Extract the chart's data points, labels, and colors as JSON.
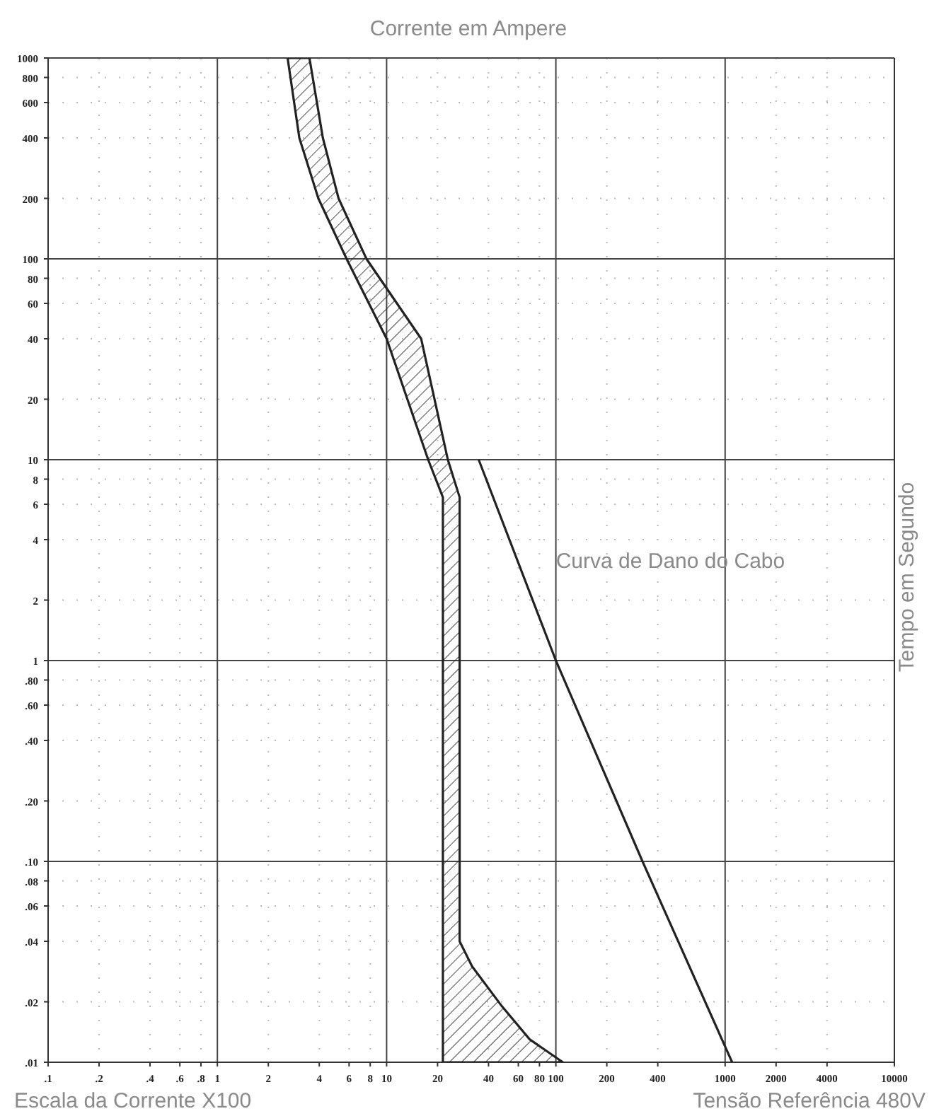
{
  "chart_data": {
    "type": "line",
    "title": "Corrente em Ampere",
    "xlabel": "Escala da Corrente X100",
    "ylabel": "Tempo em Segundo",
    "annotations": [
      "Tensão Referência 480V"
    ],
    "log": "xy",
    "grid": true,
    "marker": "none",
    "line_style": "solid",
    "xlim": [
      0.1,
      10000
    ],
    "ylim": [
      0.01,
      1000
    ],
    "xticks": [
      {
        "value": 0.1,
        "label": ".1"
      },
      {
        "value": 0.2,
        "label": ".2"
      },
      {
        "value": 0.4,
        "label": ".4"
      },
      {
        "value": 0.6,
        "label": ".6"
      },
      {
        "value": 0.8,
        "label": ".8"
      },
      1,
      2,
      4,
      6,
      8,
      10,
      20,
      40,
      60,
      80,
      100,
      200,
      400,
      1000,
      2000,
      4000,
      10000
    ],
    "yticks": [
      {
        "value": 0.01,
        "label": ".01"
      },
      {
        "value": 0.02,
        "label": ".02"
      },
      {
        "value": 0.04,
        "label": ".04"
      },
      {
        "value": 0.06,
        "label": ".06"
      },
      {
        "value": 0.08,
        "label": ".08"
      },
      {
        "value": 0.1,
        "label": ".10"
      },
      {
        "value": 0.2,
        "label": ".20"
      },
      {
        "value": 0.4,
        "label": ".40"
      },
      {
        "value": 0.6,
        "label": ".60"
      },
      {
        "value": 0.8,
        "label": ".80"
      },
      1,
      2,
      4,
      6,
      8,
      10,
      20,
      40,
      60,
      80,
      100,
      200,
      400,
      600,
      800,
      1000
    ],
    "series": [
      {
        "type": "area",
        "color": "#222222",
        "x": [
          2.6,
          3.05,
          3.95,
          5.8,
          10,
          17.6,
          21.5,
          21.5,
          110,
          70,
          48,
          32,
          27,
          27,
          23,
          16,
          7.6,
          5.2,
          4.2,
          3.5
        ],
        "values": [
          1000,
          400,
          200,
          100,
          40,
          10,
          6.5,
          0.01,
          0.01,
          0.013,
          0.019,
          0.03,
          0.04,
          6.5,
          10,
          40,
          100,
          200,
          400,
          1000
        ]
      },
      {
        "name": "Curva de Dano do Cabo",
        "color": "#222222",
        "x": [
          35,
          100,
          325,
          1100
        ],
        "values": [
          10,
          1,
          0.1,
          0.01
        ]
      }
    ]
  }
}
